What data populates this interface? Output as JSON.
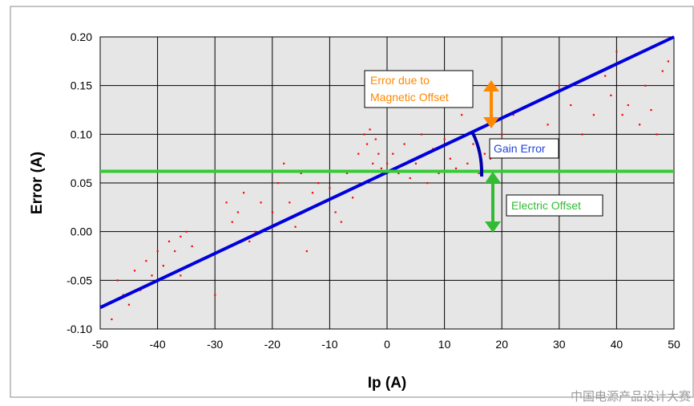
{
  "chart_data": {
    "type": "scatter",
    "xlabel": "Ip (A)",
    "ylabel": "Error (A)",
    "xlim": [
      -50,
      50
    ],
    "ylim": [
      -0.1,
      0.2
    ],
    "x_ticks": [
      "-50",
      "-40",
      "-30",
      "-20",
      "-10",
      "0",
      "10",
      "20",
      "30",
      "40",
      "50"
    ],
    "y_ticks": [
      "-0.10",
      "-0.05",
      "0.00",
      "0.05",
      "0.10",
      "0.15",
      "0.20"
    ],
    "grid": true,
    "series": [
      {
        "type": "scatter",
        "color": "#ff0000",
        "points": [
          [
            -48,
            -0.09
          ],
          [
            -47,
            -0.05
          ],
          [
            -46,
            -0.065
          ],
          [
            -45,
            -0.075
          ],
          [
            -44,
            -0.04
          ],
          [
            -43,
            -0.06
          ],
          [
            -42,
            -0.03
          ],
          [
            -41,
            -0.045
          ],
          [
            -40,
            -0.02
          ],
          [
            -39,
            -0.035
          ],
          [
            -38,
            -0.01
          ],
          [
            -37,
            -0.02
          ],
          [
            -36,
            -0.005
          ],
          [
            -35,
            0.0
          ],
          [
            -34,
            -0.015
          ],
          [
            -36,
            -0.045
          ],
          [
            -30,
            -0.065
          ],
          [
            -28,
            0.03
          ],
          [
            -27,
            0.01
          ],
          [
            -26,
            0.02
          ],
          [
            -25,
            0.04
          ],
          [
            -24,
            -0.01
          ],
          [
            -23,
            0.0
          ],
          [
            -22,
            0.03
          ],
          [
            -20,
            0.02
          ],
          [
            -19,
            0.05
          ],
          [
            -18,
            0.07
          ],
          [
            -17,
            0.03
          ],
          [
            -16,
            0.005
          ],
          [
            -15,
            0.06
          ],
          [
            -14,
            -0.02
          ],
          [
            -13,
            0.04
          ],
          [
            -12,
            0.05
          ],
          [
            -11,
            0.03
          ],
          [
            -10,
            0.045
          ],
          [
            -9,
            0.02
          ],
          [
            -8,
            0.01
          ],
          [
            -7,
            0.06
          ],
          [
            -6,
            0.035
          ],
          [
            -5,
            0.08
          ],
          [
            -4,
            0.1
          ],
          [
            -3.5,
            0.09
          ],
          [
            -3,
            0.105
          ],
          [
            -2.5,
            0.07
          ],
          [
            -2,
            0.095
          ],
          [
            -1.5,
            0.08
          ],
          [
            -1,
            0.065
          ],
          [
            0,
            0.07
          ],
          [
            1,
            0.08
          ],
          [
            2,
            0.06
          ],
          [
            3,
            0.09
          ],
          [
            4,
            0.055
          ],
          [
            5,
            0.07
          ],
          [
            6,
            0.1
          ],
          [
            7,
            0.05
          ],
          [
            8,
            0.085
          ],
          [
            9,
            0.06
          ],
          [
            10,
            0.095
          ],
          [
            11,
            0.075
          ],
          [
            12,
            0.065
          ],
          [
            13,
            0.12
          ],
          [
            14,
            0.07
          ],
          [
            15,
            0.09
          ],
          [
            16,
            0.06
          ],
          [
            17,
            0.08
          ],
          [
            18,
            0.075
          ],
          [
            20,
            0.1
          ],
          [
            22,
            0.12
          ],
          [
            25,
            0.09
          ],
          [
            28,
            0.11
          ],
          [
            30,
            0.15
          ],
          [
            32,
            0.13
          ],
          [
            34,
            0.1
          ],
          [
            36,
            0.12
          ],
          [
            38,
            0.16
          ],
          [
            39,
            0.14
          ],
          [
            40,
            0.185
          ],
          [
            41,
            0.12
          ],
          [
            42,
            0.13
          ],
          [
            44,
            0.11
          ],
          [
            45,
            0.15
          ],
          [
            46,
            0.125
          ],
          [
            47,
            0.1
          ],
          [
            48,
            0.165
          ],
          [
            49,
            0.175
          ]
        ]
      },
      {
        "type": "line",
        "color": "#0000dd",
        "x": [
          -50,
          50
        ],
        "y": [
          -0.078,
          0.2
        ]
      },
      {
        "type": "line",
        "color": "#33cc33",
        "x": [
          -50,
          50
        ],
        "y": [
          0.062,
          0.062
        ]
      }
    ],
    "annotations": [
      {
        "lines": [
          "Error due to",
          "Magnetic Offset"
        ],
        "color": "#ff8800"
      },
      {
        "lines": [
          "Gain Error"
        ],
        "color": "#2244dd"
      },
      {
        "lines": [
          "Electric Offset"
        ],
        "color": "#33bb33"
      }
    ]
  },
  "watermark": "中国电源产品设计大赛"
}
